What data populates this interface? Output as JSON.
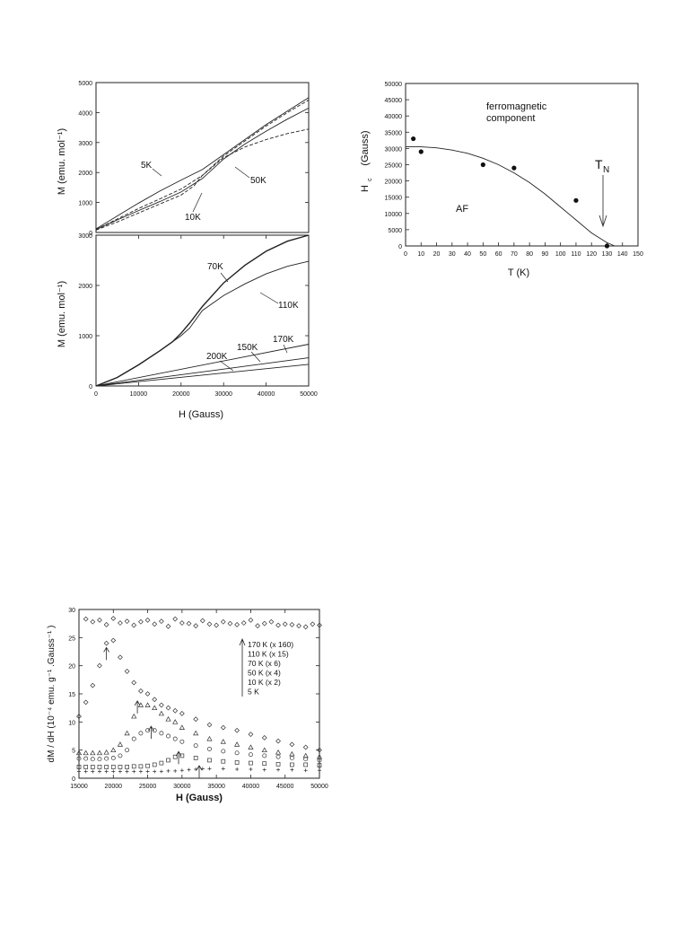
{
  "chart_data": [
    {
      "id": "magnetization",
      "type": "line",
      "xlabel": "H  (Gauss)",
      "x_ticks": [
        "0",
        "10000",
        "20000",
        "30000",
        "40000",
        "50000"
      ],
      "xlim": [
        0,
        50000
      ],
      "panels": [
        {
          "ylabel": "M  (emu. mol⁻¹)",
          "ylim": [
            0,
            5000
          ],
          "y_ticks": [
            "0",
            "1000",
            "2000",
            "3000",
            "4000",
            "5000"
          ],
          "series": [
            {
              "name": "5K",
              "x": [
                0,
                5000,
                10000,
                15000,
                20000,
                25000,
                30000,
                35000,
                40000,
                45000,
                50000
              ],
              "y": [
                120,
                550,
                980,
                1380,
                1750,
                2100,
                2600,
                3100,
                3600,
                4050,
                4500
              ]
            },
            {
              "name": "10K",
              "x": [
                0,
                5000,
                10000,
                15000,
                20000,
                25000,
                30000,
                35000,
                40000,
                45000,
                50000
              ],
              "y": [
                100,
                450,
                800,
                1120,
                1450,
                1900,
                2550,
                3050,
                3550,
                4000,
                4420
              ]
            },
            {
              "name": "10K",
              "x": [
                0,
                5000,
                10000,
                15000,
                20000,
                25000,
                30000,
                35000,
                40000,
                45000,
                50000
              ],
              "y": [
                100,
                420,
                730,
                1030,
                1350,
                1800,
                2450,
                2950,
                3380,
                3780,
                4150
              ]
            },
            {
              "name": "50K",
              "x": [
                0,
                5000,
                10000,
                15000,
                20000,
                23000,
                25000,
                30000,
                35000,
                40000,
                45000,
                50000
              ],
              "y": [
                80,
                350,
                650,
                950,
                1250,
                1550,
                1900,
                2500,
                2850,
                3100,
                3300,
                3450
              ]
            }
          ],
          "labels": [
            "5K",
            "10K",
            "50K"
          ]
        },
        {
          "ylabel": "M  (emu. mol⁻¹)",
          "ylim": [
            0,
            3000
          ],
          "y_ticks": [
            "0",
            "1000",
            "2000",
            "3000"
          ],
          "series": [
            {
              "name": "70K",
              "x": [
                0,
                5000,
                10000,
                15000,
                18000,
                20000,
                22000,
                25000,
                30000,
                35000,
                40000,
                45000,
                50000
              ],
              "y": [
                0,
                170,
                420,
                700,
                880,
                1050,
                1250,
                1580,
                2050,
                2400,
                2680,
                2880,
                3000
              ]
            },
            {
              "name": "110K",
              "x": [
                0,
                5000,
                10000,
                15000,
                18000,
                20000,
                22000,
                25000,
                30000,
                35000,
                40000,
                45000,
                50000
              ],
              "y": [
                0,
                170,
                420,
                700,
                880,
                1000,
                1150,
                1500,
                1800,
                2030,
                2230,
                2380,
                2480
              ]
            },
            {
              "name": "170K",
              "x": [
                0,
                50000
              ],
              "y": [
                0,
                830
              ]
            },
            {
              "name": "150K",
              "x": [
                0,
                50000
              ],
              "y": [
                0,
                560
              ]
            },
            {
              "name": "200K",
              "x": [
                0,
                50000
              ],
              "y": [
                0,
                430
              ]
            }
          ],
          "labels": [
            "70K",
            "110K",
            "170K",
            "150K",
            "200K"
          ]
        }
      ]
    },
    {
      "id": "phase-diagram",
      "type": "scatter",
      "xlabel": "T (K)",
      "ylabel": "H",
      "ylabel_sub": "c",
      "ylabel_unit": "(Gauss)",
      "xlim": [
        0,
        150
      ],
      "ylim": [
        0,
        50000
      ],
      "x_ticks": [
        "0",
        "10",
        "20",
        "30",
        "40",
        "50",
        "60",
        "70",
        "80",
        "90",
        "100",
        "110",
        "120",
        "130",
        "140",
        "150"
      ],
      "y_ticks": [
        "0",
        "5000",
        "10000",
        "15000",
        "20000",
        "25000",
        "30000",
        "35000",
        "40000",
        "45000",
        "50000"
      ],
      "points": {
        "x": [
          5,
          10,
          50,
          70,
          110,
          130
        ],
        "y": [
          33000,
          29000,
          25000,
          24000,
          14000,
          0
        ]
      },
      "fit_curve": {
        "x": [
          0,
          10,
          20,
          30,
          40,
          50,
          60,
          70,
          80,
          90,
          100,
          110,
          120,
          130,
          135
        ],
        "y": [
          30500,
          30500,
          30200,
          29500,
          28500,
          27000,
          25000,
          22500,
          19500,
          16000,
          12000,
          8000,
          4000,
          1000,
          0
        ]
      },
      "annotations": [
        "ferromagnetic",
        "component",
        "AF",
        "T",
        "N"
      ]
    },
    {
      "id": "derivative",
      "type": "scatter",
      "xlabel": "H (Gauss)",
      "ylabel": "dM / dH   (10⁻⁴ emu. g⁻¹ .Gauss⁻¹ )",
      "xlim": [
        15000,
        50000
      ],
      "ylim": [
        0,
        30
      ],
      "x_ticks": [
        "15000",
        "20000",
        "25000",
        "30000",
        "35000",
        "40000",
        "45000",
        "50000"
      ],
      "y_ticks": [
        "0",
        "5",
        "10",
        "15",
        "20",
        "25",
        "30"
      ],
      "series": [
        {
          "name": "170 K (x 160)",
          "marker": "diamond",
          "x": [
            16000,
            17000,
            18000,
            19000,
            20000,
            21000,
            22000,
            23000,
            24000,
            25000,
            26000,
            27000,
            28000,
            29000,
            30000,
            31000,
            32000,
            33000,
            34000,
            35000,
            36000,
            37000,
            38000,
            39000,
            40000,
            41000,
            42000,
            43000,
            44000,
            45000,
            46000,
            47000,
            48000,
            49000,
            50000
          ],
          "y": [
            28.3,
            27.8,
            28.1,
            27.3,
            28.4,
            27.6,
            27.9,
            27.2,
            27.8,
            28.1,
            27.4,
            27.9,
            27.0,
            28.3,
            27.6,
            27.5,
            27.1,
            28.0,
            27.4,
            27.2,
            27.8,
            27.5,
            27.3,
            27.6,
            28.1,
            27.1,
            27.5,
            27.8,
            27.2,
            27.4,
            27.3,
            27.1,
            26.9,
            27.4,
            27.2
          ]
        },
        {
          "name": "110 K (x 15)",
          "marker": "diamond",
          "x": [
            15000,
            16000,
            17000,
            18000,
            19000,
            20000,
            21000,
            22000,
            23000,
            24000,
            25000,
            26000,
            27000,
            28000,
            29000,
            30000,
            32000,
            34000,
            36000,
            38000,
            40000,
            42000,
            44000,
            46000,
            48000,
            50000
          ],
          "y": [
            11,
            13.5,
            16.5,
            20,
            24,
            24.5,
            21.5,
            19,
            17,
            15.5,
            15,
            14,
            13,
            12.5,
            12,
            11.5,
            10.5,
            9.5,
            9,
            8.5,
            7.8,
            7.2,
            6.6,
            6,
            5.5,
            5
          ]
        },
        {
          "name": "70 K (x 6)",
          "marker": "triangle",
          "x": [
            15000,
            16000,
            17000,
            18000,
            19000,
            20000,
            21000,
            22000,
            23000,
            24000,
            25000,
            26000,
            27000,
            28000,
            29000,
            30000,
            32000,
            34000,
            36000,
            38000,
            40000,
            42000,
            44000,
            46000,
            48000,
            50000
          ],
          "y": [
            4.5,
            4.5,
            4.5,
            4.5,
            4.6,
            5,
            6,
            8,
            11,
            13,
            13,
            12.5,
            11.5,
            10.5,
            10,
            9,
            8,
            7,
            6.5,
            6,
            5.5,
            5,
            4.6,
            4.3,
            4,
            3.8
          ]
        },
        {
          "name": "50 K (x 4)",
          "marker": "circle",
          "x": [
            15000,
            16000,
            17000,
            18000,
            19000,
            20000,
            21000,
            22000,
            23000,
            24000,
            25000,
            26000,
            27000,
            28000,
            29000,
            30000,
            32000,
            34000,
            36000,
            38000,
            40000,
            42000,
            44000,
            46000,
            48000,
            50000
          ],
          "y": [
            3.5,
            3.5,
            3.4,
            3.4,
            3.5,
            3.6,
            4,
            5,
            7,
            8,
            8.5,
            8.5,
            8,
            7.5,
            7,
            6.5,
            5.8,
            5.2,
            4.8,
            4.5,
            4.2,
            4,
            3.8,
            3.6,
            3.4,
            3.2
          ]
        },
        {
          "name": "10 K (x 2)",
          "marker": "square",
          "x": [
            15000,
            16000,
            17000,
            18000,
            19000,
            20000,
            21000,
            22000,
            23000,
            24000,
            25000,
            26000,
            27000,
            28000,
            29000,
            30000,
            32000,
            34000,
            36000,
            38000,
            40000,
            42000,
            44000,
            46000,
            48000,
            50000
          ],
          "y": [
            2,
            2,
            2,
            2,
            2,
            2,
            2,
            2,
            2.1,
            2.1,
            2.2,
            2.4,
            2.7,
            3.2,
            3.8,
            4,
            3.6,
            3.2,
            3,
            2.8,
            2.7,
            2.6,
            2.5,
            2.4,
            2.4,
            2.3
          ]
        },
        {
          "name": "5 K",
          "marker": "plus",
          "x": [
            15000,
            16000,
            17000,
            18000,
            19000,
            20000,
            21000,
            22000,
            23000,
            24000,
            25000,
            26000,
            27000,
            28000,
            29000,
            30000,
            31000,
            32000,
            33000,
            34000,
            36000,
            38000,
            40000,
            42000,
            44000,
            46000,
            48000,
            50000
          ],
          "y": [
            1.2,
            1.2,
            1.2,
            1.2,
            1.2,
            1.2,
            1.2,
            1.2,
            1.2,
            1.2,
            1.2,
            1.2,
            1.2,
            1.3,
            1.3,
            1.4,
            1.5,
            1.6,
            1.7,
            1.7,
            1.7,
            1.6,
            1.6,
            1.5,
            1.5,
            1.5,
            1.4,
            1.4
          ]
        }
      ],
      "arrows": [
        {
          "x": 19000,
          "y": 21
        },
        {
          "x": 23500,
          "y": 11.5
        },
        {
          "x": 25500,
          "y": 7
        },
        {
          "x": 29500,
          "y": 2.5
        },
        {
          "x": 32500,
          "y": 0
        }
      ],
      "legend": [
        "170 K (x 160)",
        "110 K (x 15)",
        "70 K (x 6)",
        "50 K (x 4)",
        "10 K (x 2)",
        "5 K"
      ]
    }
  ]
}
